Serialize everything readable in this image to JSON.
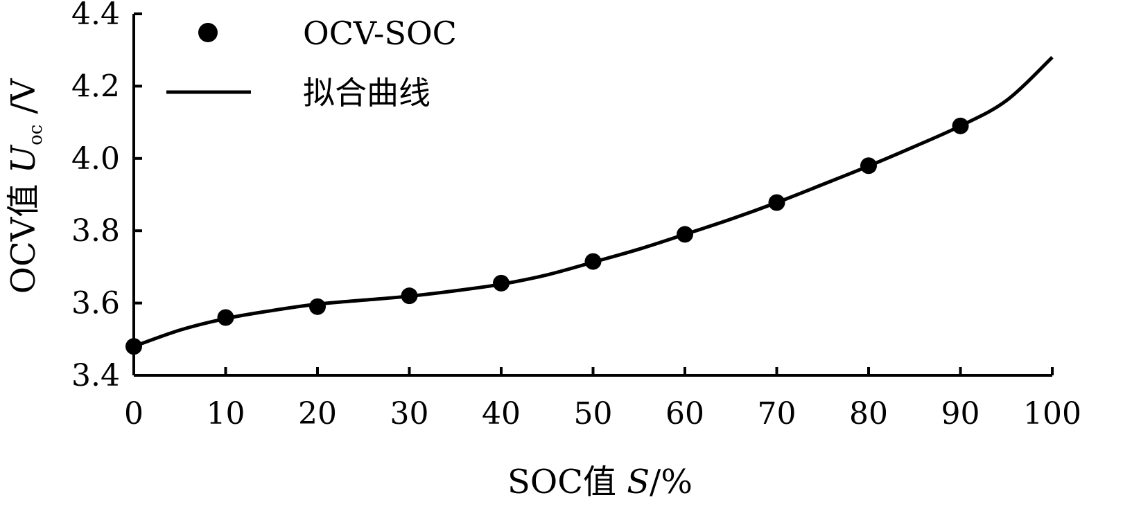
{
  "chart_data": {
    "type": "scatter",
    "xlim": [
      0,
      100
    ],
    "ylim": [
      3.4,
      4.4
    ],
    "x_ticks": [
      "0",
      "10",
      "20",
      "30",
      "40",
      "50",
      "60",
      "70",
      "80",
      "90",
      "100"
    ],
    "y_ticks": [
      "3.4",
      "3.6",
      "3.8",
      "4.0",
      "4.2",
      "4.4"
    ],
    "xlabel": {
      "prefix": "SOC值 ",
      "var": "S",
      "suffix": "/%"
    },
    "ylabel": {
      "prefix": "OCV值 ",
      "var": "U",
      "sub": "oc",
      "suffix": " /V"
    },
    "grid": false,
    "legend_position": "top-left",
    "series": [
      {
        "name": "OCV-SOC",
        "style": "markers",
        "color": "#000000",
        "x": [
          0,
          10,
          20,
          30,
          40,
          50,
          60,
          70,
          80,
          90
        ],
        "y": [
          3.48,
          3.56,
          3.59,
          3.62,
          3.655,
          3.715,
          3.79,
          3.878,
          3.98,
          4.09
        ]
      },
      {
        "name": "拟合曲线",
        "style": "line",
        "color": "#000000",
        "x": [
          0,
          5,
          10,
          15,
          20,
          25,
          30,
          35,
          40,
          45,
          50,
          55,
          60,
          65,
          70,
          75,
          80,
          85,
          90,
          95,
          100
        ],
        "y": [
          3.48,
          3.525,
          3.557,
          3.579,
          3.597,
          3.608,
          3.619,
          3.634,
          3.652,
          3.678,
          3.713,
          3.749,
          3.79,
          3.832,
          3.878,
          3.928,
          3.979,
          4.033,
          4.09,
          4.16,
          4.28
        ]
      }
    ]
  }
}
